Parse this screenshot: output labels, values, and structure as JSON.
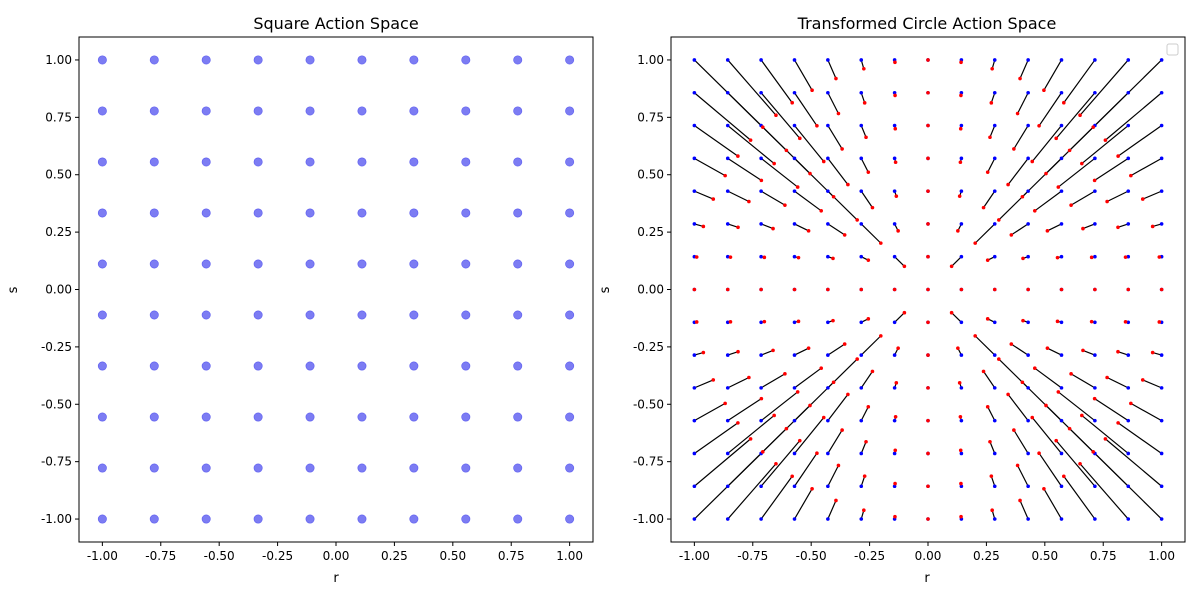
{
  "chart_data": [
    {
      "type": "scatter",
      "title": "Square Action Space",
      "xlabel": "r",
      "ylabel": "s",
      "xlim": [
        -1.1,
        1.1
      ],
      "ylim": [
        -1.1,
        1.1
      ],
      "xticks": [
        "-1.00",
        "-0.75",
        "-0.50",
        "-0.25",
        "0.00",
        "0.25",
        "0.50",
        "0.75",
        "1.00"
      ],
      "yticks": [
        "1.00",
        "0.75",
        "0.50",
        "0.25",
        "0.00",
        "-0.25",
        "-0.50",
        "-0.75",
        "-1.00"
      ],
      "grid": false,
      "colors": {
        "points": "#4444ee"
      },
      "series": [
        {
          "grid_values": [
            -1.0,
            -0.7778,
            -0.5556,
            -0.3333,
            -0.1111,
            0.1111,
            0.3333,
            0.5556,
            0.7778,
            1.0
          ],
          "description": "10 x 10 grid of points, every (r, s) pair from grid_values"
        }
      ]
    },
    {
      "type": "scatter",
      "title": "Transformed Circle Action Space",
      "xlabel": "r",
      "ylabel": "s",
      "xlim": [
        -1.1,
        1.1
      ],
      "ylim": [
        -1.1,
        1.1
      ],
      "xticks": [
        "-1.00",
        "-0.75",
        "-0.50",
        "-0.25",
        "0.00",
        "0.25",
        "0.50",
        "0.75",
        "1.00"
      ],
      "yticks": [
        "1.00",
        "0.75",
        "0.50",
        "0.25",
        "0.00",
        "-0.25",
        "-0.50",
        "-0.75",
        "-1.00"
      ],
      "grid": false,
      "legend": {
        "placement": "top-right",
        "entries": []
      },
      "colors": {
        "original": "#0000ff",
        "transformed": "#ff0000",
        "connector": "#000000"
      },
      "series": [
        {
          "grid_values": [
            -1.0,
            -0.8571,
            -0.7143,
            -0.5714,
            -0.4286,
            -0.2857,
            -0.1429,
            0.0,
            0.1429,
            0.2857,
            0.4286,
            0.5714,
            0.7143,
            0.8571,
            1.0
          ],
          "description": "15 x 15 grid of original (blue) points, each connected by a black line to its transformed (red) point, square-to-disc mapping"
        }
      ]
    }
  ]
}
